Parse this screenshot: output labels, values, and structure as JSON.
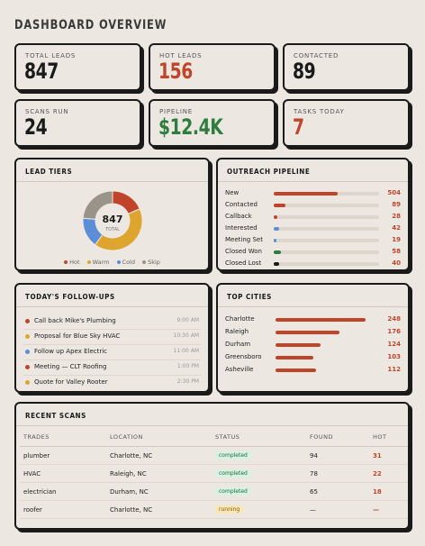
{
  "page": {
    "title": "DASHBOARD OVERVIEW"
  },
  "stats": [
    {
      "label": "TOTAL LEADS",
      "value": "847",
      "color": "#1a1a1a"
    },
    {
      "label": "HOT LEADS",
      "value": "156",
      "color": "#c0442a"
    },
    {
      "label": "CONTACTED",
      "value": "89",
      "color": "#1a1a1a"
    },
    {
      "label": "SCANS RUN",
      "value": "24",
      "color": "#1a1a1a"
    },
    {
      "label": "PIPELINE",
      "value": "$12.4K",
      "color": "#2e7d3e"
    },
    {
      "label": "TASKS TODAY",
      "value": "7",
      "color": "#c0442a"
    }
  ],
  "lead_tiers": {
    "title": "LEAD TIERS",
    "center_value": "847",
    "center_label": "TOTAL",
    "legend": [
      {
        "label": "Hot",
        "color": "#c0442a"
      },
      {
        "label": "Warm",
        "color": "#dea52e"
      },
      {
        "label": "Cold",
        "color": "#5b8ed6"
      },
      {
        "label": "Skip",
        "color": "#9a938a"
      }
    ]
  },
  "chart_data": {
    "type": "pie",
    "categories": [
      "Hot",
      "Warm",
      "Cold",
      "Skip"
    ],
    "values": [
      156,
      352,
      139,
      200
    ]
  },
  "pipeline": {
    "title": "OUTREACH PIPELINE",
    "max": 504,
    "rows": [
      {
        "label": "New",
        "value": 504,
        "color": "#c0442a"
      },
      {
        "label": "Contacted",
        "value": 89,
        "color": "#c0442a"
      },
      {
        "label": "Callback",
        "value": 28,
        "color": "#c0442a"
      },
      {
        "label": "Interested",
        "value": 42,
        "color": "#5b8ed6"
      },
      {
        "label": "Meeting Set",
        "value": 19,
        "color": "#5b8ed6"
      },
      {
        "label": "Closed Won",
        "value": 58,
        "color": "#2e7d3e"
      },
      {
        "label": "Closed Lost",
        "value": 40,
        "color": "#1a1a1a"
      }
    ]
  },
  "followups": {
    "title": "TODAY'S FOLLOW-UPS",
    "items": [
      {
        "text": "Call back Mike's Plumbing",
        "time": "9:00 AM",
        "color": "#c0442a"
      },
      {
        "text": "Proposal for Blue Sky HVAC",
        "time": "10:30 AM",
        "color": "#dea52e"
      },
      {
        "text": "Follow up Apex Electric",
        "time": "11:00 AM",
        "color": "#5b8ed6"
      },
      {
        "text": "Meeting — CLT Roofing",
        "time": "1:00 PM",
        "color": "#c0442a"
      },
      {
        "text": "Quote for Valley Rooter",
        "time": "2:30 PM",
        "color": "#dea52e"
      }
    ]
  },
  "cities": {
    "title": "TOP CITIES",
    "max": 248,
    "rows": [
      {
        "label": "Charlotte",
        "value": 248
      },
      {
        "label": "Raleigh",
        "value": 176
      },
      {
        "label": "Durham",
        "value": 124
      },
      {
        "label": "Greensboro",
        "value": 103
      },
      {
        "label": "Asheville",
        "value": 112
      }
    ]
  },
  "scans": {
    "title": "RECENT SCANS",
    "headers": [
      "TRADES",
      "LOCATION",
      "STATUS",
      "FOUND",
      "HOT"
    ],
    "rows": [
      {
        "trade": "plumber",
        "location": "Charlotte, NC",
        "status": "completed",
        "found": "94",
        "hot": "31"
      },
      {
        "trade": "HVAC",
        "location": "Raleigh, NC",
        "status": "completed",
        "found": "78",
        "hot": "22"
      },
      {
        "trade": "electrician",
        "location": "Durham, NC",
        "status": "completed",
        "found": "65",
        "hot": "18"
      },
      {
        "trade": "roofer",
        "location": "Charlotte, NC",
        "status": "running",
        "found": "—",
        "hot": "—"
      }
    ]
  }
}
